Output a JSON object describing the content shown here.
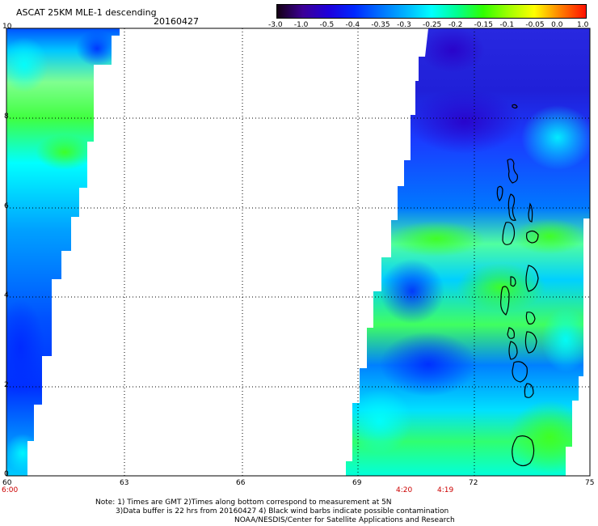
{
  "header": {
    "title": "ASCAT 25KM MLE-1 descending",
    "date": "20160427"
  },
  "colorbar": {
    "labels": [
      "-3.0",
      "-1.0",
      "-0.5",
      "-0.4",
      "-0.35",
      "-0.3",
      "-0.25",
      "-0.2",
      "-0.15",
      "-0.1",
      "-0.05",
      "0.0",
      "1.0"
    ],
    "colors": [
      "#140014",
      "#3c0096",
      "#1e00dc",
      "#0028ff",
      "#0070ff",
      "#00b4ff",
      "#00ffff",
      "#00ff90",
      "#30ff00",
      "#a0ff00",
      "#ffff00",
      "#ff8000",
      "#ff1000"
    ]
  },
  "map": {
    "lat_ticks": [
      "0",
      "2",
      "4",
      "6",
      "8",
      "10"
    ],
    "lon_ticks": [
      "60",
      "63",
      "66",
      "69",
      "72",
      "75"
    ],
    "pass_times": [
      "6:00",
      "4:20",
      "4:19"
    ]
  },
  "footer": {
    "line1": "Note: 1) Times are GMT 2)Times along bottom correspond to measurement at 5N",
    "line2": "3)Data buffer is 22 hrs from 20160427 4) Black wind barbs indicate possible contamination",
    "line3": "NOAA/NESDIS/Center for Satellite Applications and Research"
  }
}
